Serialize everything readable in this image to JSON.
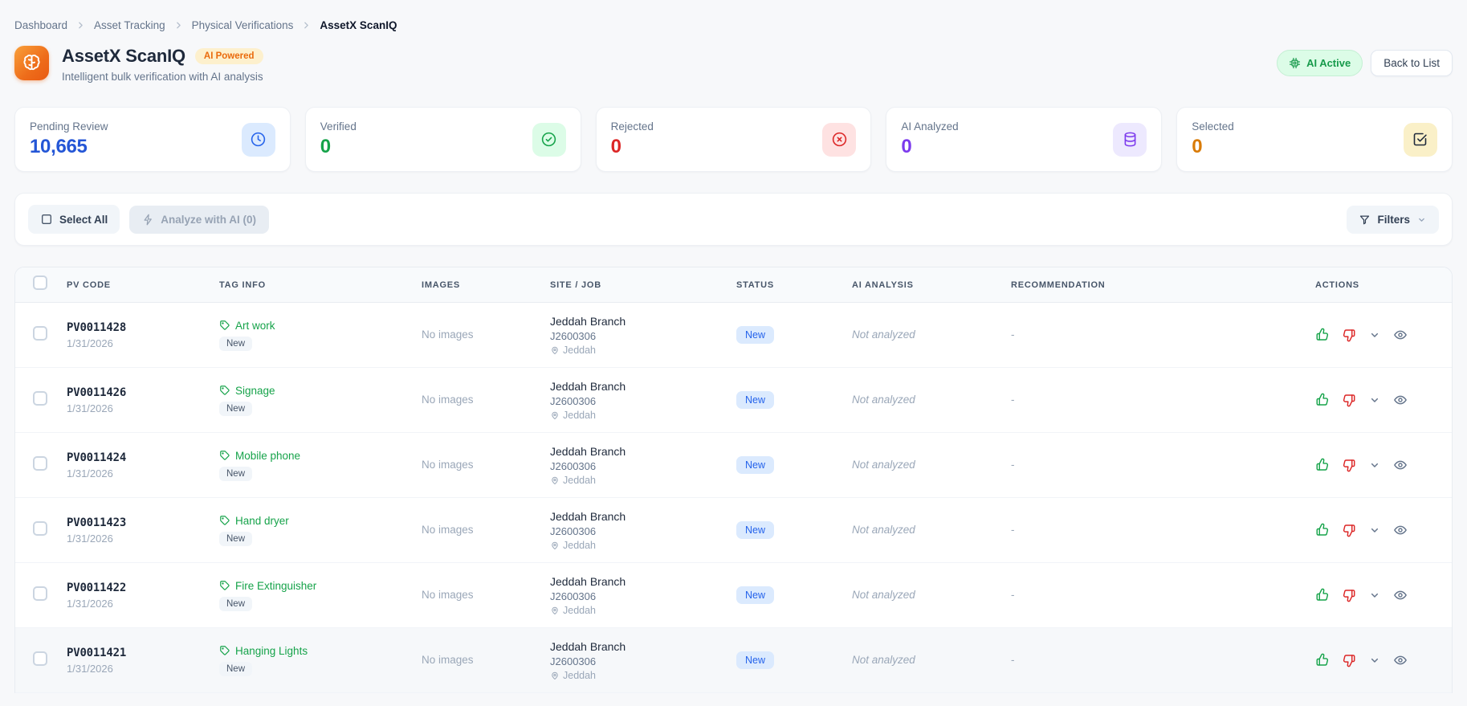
{
  "breadcrumb": {
    "items": [
      {
        "label": "Dashboard"
      },
      {
        "label": "Asset Tracking"
      },
      {
        "label": "Physical Verifications"
      },
      {
        "label": "AssetX ScanIQ"
      }
    ]
  },
  "header": {
    "title": "AssetX ScanIQ",
    "badge": "AI Powered",
    "subtitle": "Intelligent bulk verification with AI analysis",
    "ai_active_label": "AI Active",
    "back_to_list_label": "Back to List"
  },
  "stats": {
    "cards": [
      {
        "label": "Pending Review",
        "value": "10,665",
        "color": "#2456d6",
        "icon": "clock-icon",
        "icon_bg": "#dbeafe",
        "icon_color": "#2563eb"
      },
      {
        "label": "Verified",
        "value": "0",
        "color": "#16a34a",
        "icon": "check-circle-icon",
        "icon_bg": "#dcfce7",
        "icon_color": "#16a34a"
      },
      {
        "label": "Rejected",
        "value": "0",
        "color": "#dc2626",
        "icon": "x-circle-icon",
        "icon_bg": "#fee2e2",
        "icon_color": "#dc2626"
      },
      {
        "label": "AI Analyzed",
        "value": "0",
        "color": "#7c3aed",
        "icon": "database-icon",
        "icon_bg": "#ede9fe",
        "icon_color": "#7c3aed"
      },
      {
        "label": "Selected",
        "value": "0",
        "color": "#d97b06",
        "icon": "check-square-icon",
        "icon_bg": "#faf0c8",
        "icon_color": "#1e293b"
      }
    ]
  },
  "toolbar": {
    "select_all_label": "Select All",
    "analyze_label": "Analyze with AI (0)",
    "filters_label": "Filters"
  },
  "table": {
    "columns": [
      "PV CODE",
      "TAG INFO",
      "IMAGES",
      "SITE / JOB",
      "STATUS",
      "AI ANALYSIS",
      "RECOMMENDATION",
      "ACTIONS"
    ],
    "rows": [
      {
        "pv_code": "PV0011428",
        "date": "1/31/2026",
        "tag": "Art work",
        "tag_status": "New",
        "images": "No images",
        "site": "Jeddah Branch",
        "job": "J2600306",
        "city": "Jeddah",
        "status": "New",
        "ai_analysis": "Not analyzed",
        "recommendation": "-",
        "highlighted": false
      },
      {
        "pv_code": "PV0011426",
        "date": "1/31/2026",
        "tag": "Signage",
        "tag_status": "New",
        "images": "No images",
        "site": "Jeddah Branch",
        "job": "J2600306",
        "city": "Jeddah",
        "status": "New",
        "ai_analysis": "Not analyzed",
        "recommendation": "-",
        "highlighted": false
      },
      {
        "pv_code": "PV0011424",
        "date": "1/31/2026",
        "tag": "Mobile phone",
        "tag_status": "New",
        "images": "No images",
        "site": "Jeddah Branch",
        "job": "J2600306",
        "city": "Jeddah",
        "status": "New",
        "ai_analysis": "Not analyzed",
        "recommendation": "-",
        "highlighted": false
      },
      {
        "pv_code": "PV0011423",
        "date": "1/31/2026",
        "tag": "Hand dryer",
        "tag_status": "New",
        "images": "No images",
        "site": "Jeddah Branch",
        "job": "J2600306",
        "city": "Jeddah",
        "status": "New",
        "ai_analysis": "Not analyzed",
        "recommendation": "-",
        "highlighted": false
      },
      {
        "pv_code": "PV0011422",
        "date": "1/31/2026",
        "tag": "Fire Extinguisher",
        "tag_status": "New",
        "images": "No images",
        "site": "Jeddah Branch",
        "job": "J2600306",
        "city": "Jeddah",
        "status": "New",
        "ai_analysis": "Not analyzed",
        "recommendation": "-",
        "highlighted": false
      },
      {
        "pv_code": "PV0011421",
        "date": "1/31/2026",
        "tag": "Hanging Lights",
        "tag_status": "New",
        "images": "No images",
        "site": "Jeddah Branch",
        "job": "J2600306",
        "city": "Jeddah",
        "status": "New",
        "ai_analysis": "Not analyzed",
        "recommendation": "-",
        "highlighted": true
      }
    ]
  }
}
